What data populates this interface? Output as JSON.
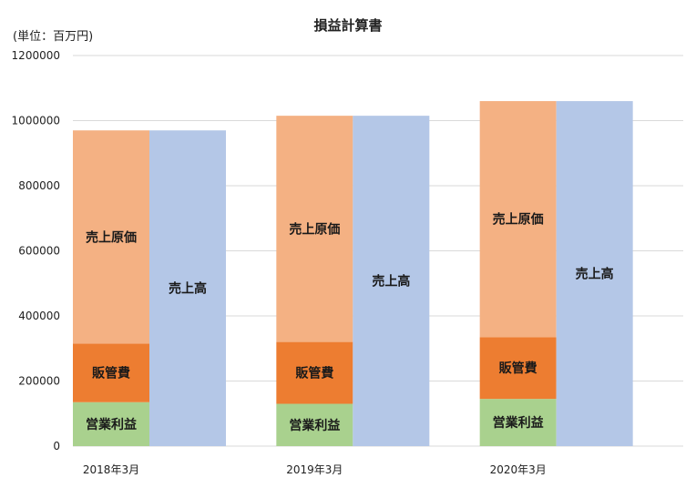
{
  "chart_data": {
    "type": "bar",
    "title": "損益計算書",
    "unit_label": "(単位：百万円)",
    "categories": [
      "2018年3月",
      "2019年3月",
      "2020年3月"
    ],
    "ylim": [
      0,
      1200000
    ],
    "yticks": [
      0,
      200000,
      400000,
      600000,
      800000,
      1000000,
      1200000
    ],
    "grid": true,
    "stacked_bar": {
      "series": [
        {
          "name": "営業利益",
          "color": "#a9d18e",
          "values": [
            135000,
            130000,
            145000
          ]
        },
        {
          "name": "販管費",
          "color": "#ed7d31",
          "values": [
            180000,
            190000,
            190000
          ]
        },
        {
          "name": "売上原価",
          "color": "#f4b183",
          "values": [
            655000,
            695000,
            725000
          ]
        }
      ]
    },
    "total_bar": {
      "name": "売上高",
      "color": "#b4c7e7",
      "values": [
        970000,
        1015000,
        1060000
      ]
    }
  }
}
